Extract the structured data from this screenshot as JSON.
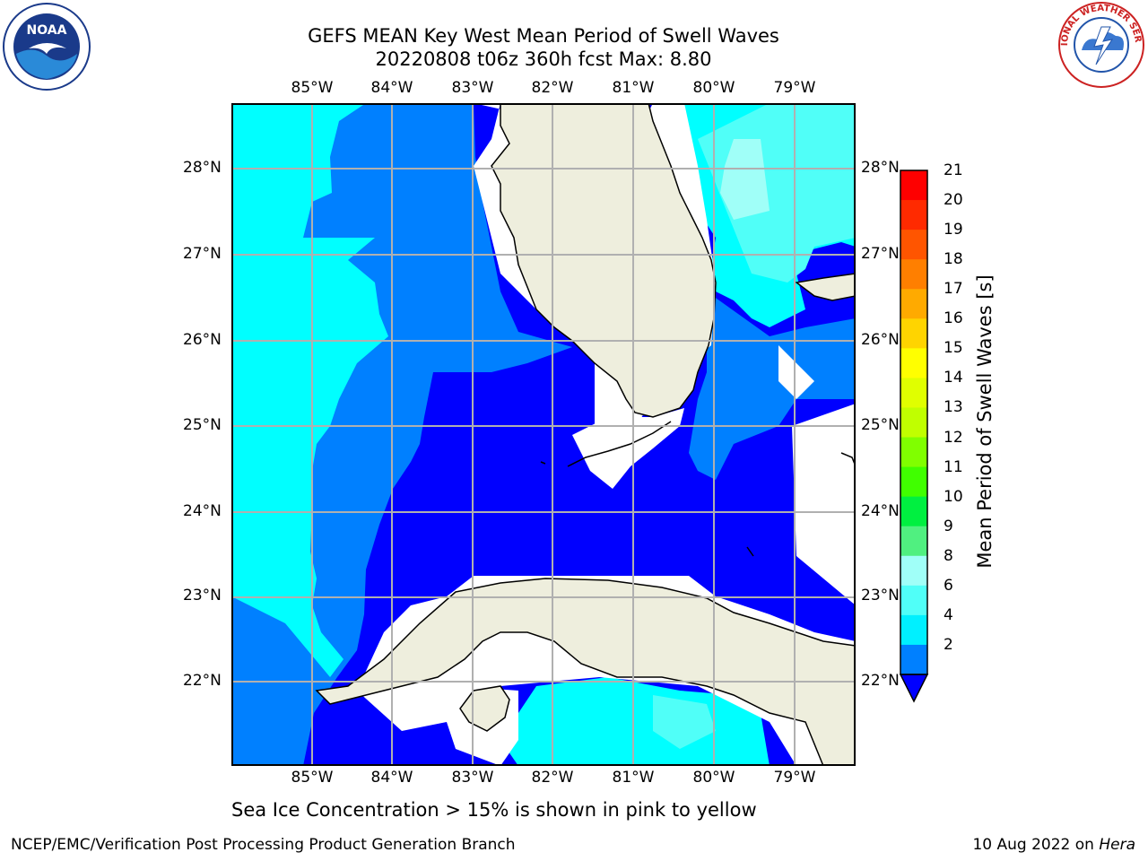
{
  "title": {
    "line1": "GEFS MEAN Key West Mean Period of Swell Waves",
    "line2": "20220808 t06z 360h fcst   Max: 8.80"
  },
  "axes": {
    "lon_labels": [
      "85°W",
      "84°W",
      "83°W",
      "82°W",
      "81°W",
      "80°W",
      "79°W"
    ],
    "lat_labels": [
      "28°N",
      "27°N",
      "26°N",
      "25°N",
      "24°N",
      "23°N",
      "22°N"
    ]
  },
  "colorbar": {
    "label": "Mean Period of Swell Waves [s]",
    "ticks": [
      "21",
      "20",
      "19",
      "18",
      "17",
      "16",
      "15",
      "14",
      "13",
      "12",
      "11",
      "10",
      "9",
      "8",
      "6",
      "4",
      "2"
    ],
    "colors": [
      "#fe0000",
      "#ff2a00",
      "#ff5500",
      "#ff7f00",
      "#ffaa00",
      "#ffd400",
      "#ffff00",
      "#e0ff00",
      "#c0ff00",
      "#80ff00",
      "#40ff00",
      "#00f040",
      "#50f080",
      "#a0fff8",
      "#50fff8",
      "#00f0ff",
      "#0080ff"
    ],
    "extend_color": "#0000ff"
  },
  "map_colors": {
    "bin_2_4": "#0000ff",
    "bin_4_6": "#0080ff",
    "bin_6_8": "#00ffff",
    "bin_8_9": "#50fff8",
    "bin_9_10": "#a0fff8",
    "land": "#eeeedd",
    "no_data": "#ffffff",
    "grid": "#b0b0b0"
  },
  "footer": {
    "note": "Sea Ice Concentration > 15% is shown in pink to yellow",
    "left": "NCEP/EMC/Verification Post Processing Product Generation Branch",
    "date": "10 Aug 2022 on",
    "machine": "Hera"
  },
  "logos": {
    "noaa": "NOAA",
    "nws": "NATIONAL WEATHER SERVICE"
  }
}
